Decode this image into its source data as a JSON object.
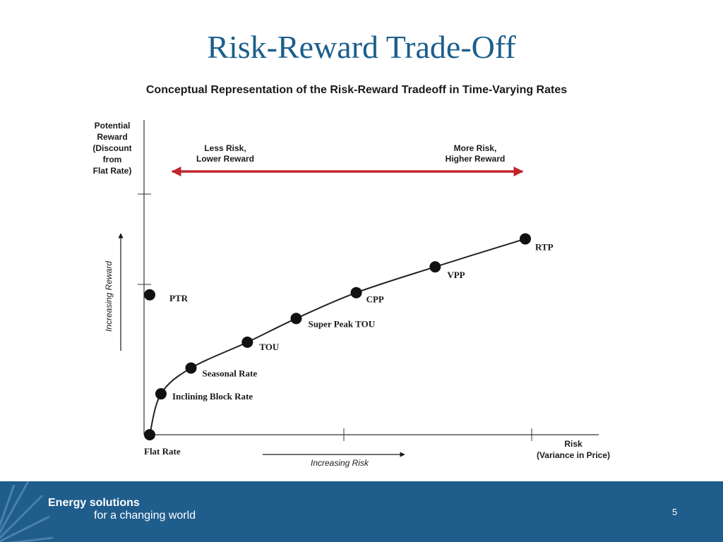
{
  "slide": {
    "title": "Risk-Reward Trade-Off",
    "footer_line1": "Energy solutions",
    "footer_line2": "for a changing world",
    "page_number": "5",
    "accent_color": "#1f5d8c"
  },
  "chart_data": {
    "type": "line",
    "title": "Conceptual Representation of the Risk-Reward Tradeoff in Time-Varying Rates",
    "ylabel_lines": [
      "Potential",
      "Reward",
      "(Discount",
      "from",
      "Flat Rate)"
    ],
    "xlabel_lines": [
      "Risk",
      "(Variance in Price)"
    ],
    "y_arrow_label": "Increasing Reward",
    "x_arrow_label": "Increasing Risk",
    "tradeoff_left": [
      "Less Risk,",
      "Lower Reward"
    ],
    "tradeoff_right": [
      "More Risk,",
      "Higher Reward"
    ],
    "tradeoff_arrow_color": "#c0272d",
    "xlim": [
      0,
      10
    ],
    "ylim": [
      0,
      10
    ],
    "series": [
      {
        "points": [
          {
            "label": "Flat Rate",
            "x": 0,
            "y": 0
          },
          {
            "label": "Inclining Block Rate",
            "x": 0.3,
            "y": 1.9
          },
          {
            "label": "Seasonal Rate",
            "x": 1.1,
            "y": 3.1
          },
          {
            "label": "TOU",
            "x": 2.6,
            "y": 4.3
          },
          {
            "label": "Super Peak TOU",
            "x": 3.9,
            "y": 5.4
          },
          {
            "label": "CPP",
            "x": 5.5,
            "y": 6.6
          },
          {
            "label": "VPP",
            "x": 7.6,
            "y": 7.8
          },
          {
            "label": "RTP",
            "x": 10,
            "y": 9.1
          }
        ]
      }
    ],
    "standalone_points": [
      {
        "label": "PTR",
        "x": 0,
        "y": 6.5
      }
    ]
  }
}
